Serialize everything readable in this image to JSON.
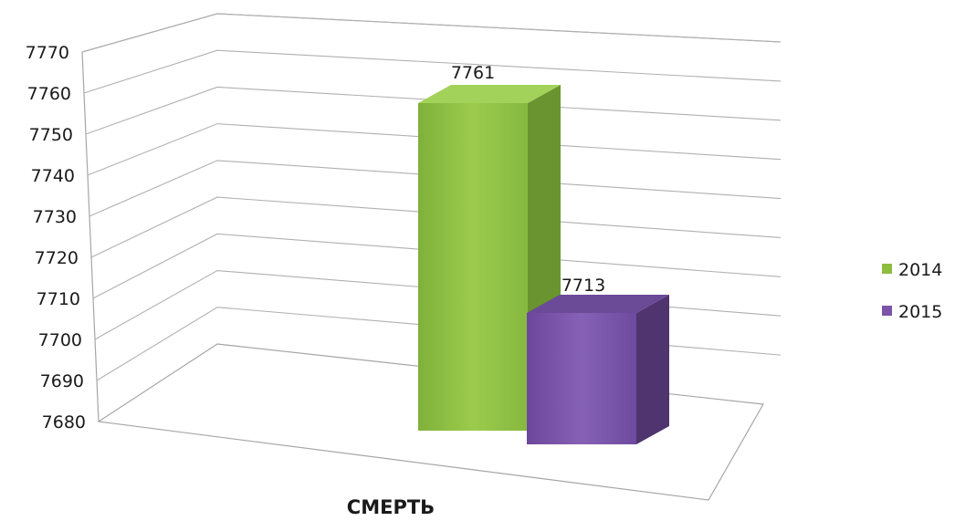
{
  "chart_data": {
    "type": "bar",
    "categories": [
      "СМЕРТЬ"
    ],
    "series": [
      {
        "name": "2014",
        "values": [
          7761
        ],
        "color": "#8cbd3f"
      },
      {
        "name": "2015",
        "values": [
          7713
        ],
        "color": "#7b53a8"
      }
    ],
    "ylim": [
      7680,
      7770
    ],
    "yticks": [
      7680,
      7690,
      7700,
      7710,
      7720,
      7730,
      7740,
      7750,
      7760,
      7770
    ],
    "data_labels": [
      "7761",
      "7713"
    ],
    "grid": true,
    "legend_position": "right",
    "style": "3d"
  }
}
